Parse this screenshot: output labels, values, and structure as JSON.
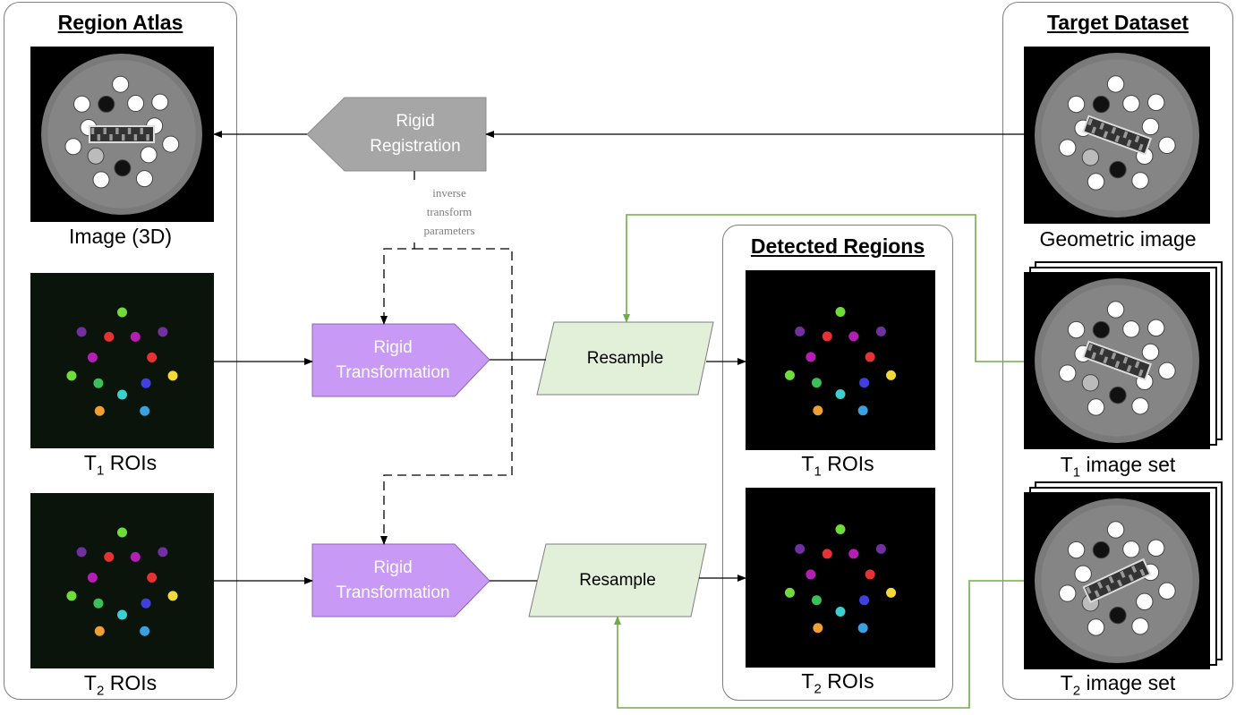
{
  "colors": {
    "registration": "#a6a6a6",
    "transformation": "#c89af5",
    "resample": "#e2efd9",
    "feedback_line": "#70ad47",
    "roi_palette": [
      "#6fdc3a",
      "#b31fb3",
      "#7030a0",
      "#e63232",
      "#f2d93a",
      "#4040e0",
      "#3ca0e0",
      "#3ccfcf",
      "#f0a030",
      "#3bbf5a"
    ]
  },
  "atlas_panel": {
    "title": "Region Atlas",
    "image_caption": "Image (3D)",
    "t1_caption_base": "T",
    "t1_caption_sub": "1",
    "t1_caption_rest": " ROIs",
    "t2_caption_base": "T",
    "t2_caption_sub": "2",
    "t2_caption_rest": " ROIs"
  },
  "target_panel": {
    "title": "Target Dataset",
    "geometric_caption": "Geometric image",
    "t1_caption_base": "T",
    "t1_caption_sub": "1",
    "t1_caption_rest": " image set",
    "t2_caption_base": "T",
    "t2_caption_sub": "2",
    "t2_caption_rest": " image set"
  },
  "detected_panel": {
    "title": "Detected  Regions",
    "t1_caption_base": "T",
    "t1_caption_sub": "1",
    "t1_caption_rest": " ROIs",
    "t2_caption_base": "T",
    "t2_caption_sub": "2",
    "t2_caption_rest": " ROIs"
  },
  "nodes": {
    "registration": {
      "line1": "Rigid",
      "line2": "Registration"
    },
    "transform_t1": {
      "line1": "Rigid",
      "line2": "Transformation"
    },
    "transform_t2": {
      "line1": "Rigid",
      "line2": "Transformation"
    },
    "resample_t1": {
      "label": "Resample"
    },
    "resample_t2": {
      "label": "Resample"
    }
  },
  "annotation": {
    "line1": "inverse",
    "line2": "transform",
    "line3": "parameters"
  }
}
